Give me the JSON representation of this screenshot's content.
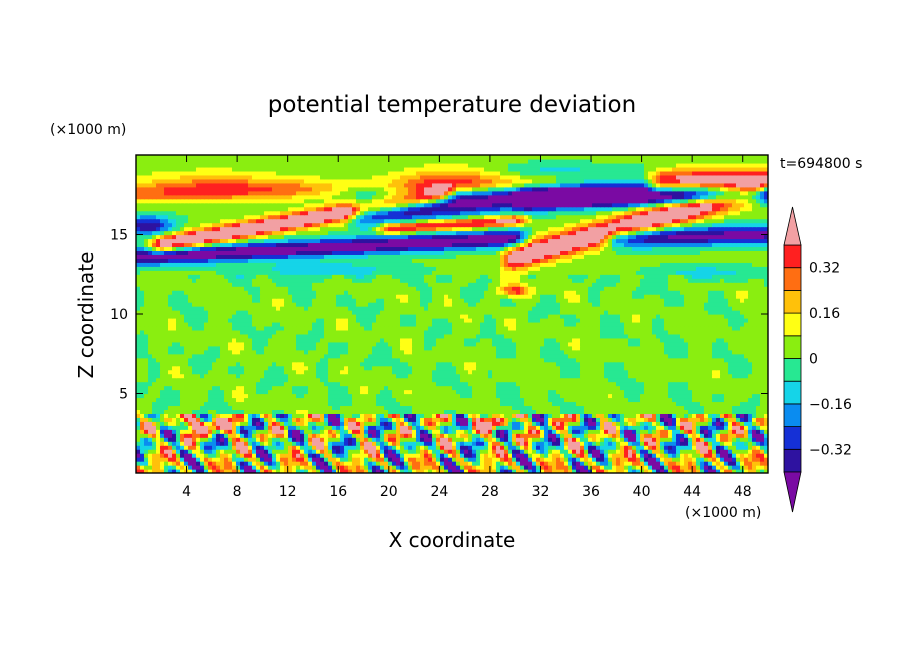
{
  "chart_data": {
    "type": "heatmap",
    "title": "potential temperature deviation",
    "xlabel": "X coordinate",
    "ylabel": "Z coordinate",
    "x_unit_label": "(×1000 m)",
    "y_unit_label": "(×1000 m)",
    "time_label": "t=694800 s",
    "xlim": [
      0,
      50
    ],
    "ylim": [
      0,
      20
    ],
    "x_ticks": [
      "4",
      "8",
      "12",
      "16",
      "20",
      "24",
      "28",
      "32",
      "36",
      "40",
      "44",
      "48"
    ],
    "x_tick_values": [
      4,
      8,
      12,
      16,
      20,
      24,
      28,
      32,
      36,
      40,
      44,
      48
    ],
    "y_ticks": [
      "5",
      "10",
      "15"
    ],
    "y_tick_values": [
      5,
      10,
      15
    ],
    "colorbar": {
      "levels": [
        -0.4,
        -0.32,
        -0.24,
        -0.16,
        -0.08,
        0,
        0.08,
        0.16,
        0.24,
        0.32,
        0.4
      ],
      "labels": [
        "0.32",
        "0.16",
        "0",
        "−0.16",
        "−0.32"
      ],
      "label_values": [
        0.32,
        0.16,
        0,
        -0.16,
        -0.32
      ],
      "colors": [
        "#7a0aa3",
        "#2e12a0",
        "#1530d6",
        "#0a8cf0",
        "#15d4e8",
        "#27e892",
        "#8aee10",
        "#ffff14",
        "#ffc10a",
        "#ff6e12",
        "#ff2020",
        "#f2a0a3"
      ],
      "extend": "both"
    }
  }
}
